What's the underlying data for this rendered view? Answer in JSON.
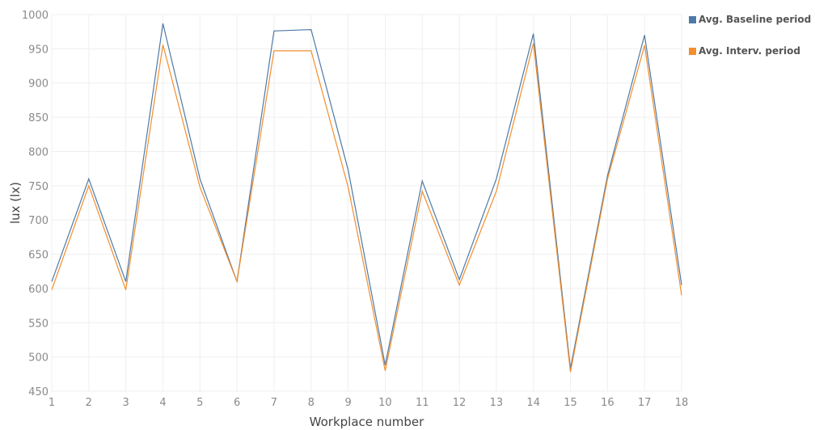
{
  "chart_data": {
    "type": "line",
    "xlabel": "Workplace number",
    "ylabel": "lux (lx)",
    "ylim": [
      450,
      1000
    ],
    "yticks": [
      450,
      500,
      550,
      600,
      650,
      700,
      750,
      800,
      850,
      900,
      950,
      1000
    ],
    "x": [
      1,
      2,
      3,
      4,
      5,
      6,
      7,
      8,
      9,
      10,
      11,
      12,
      13,
      14,
      15,
      16,
      17,
      18
    ],
    "grid": true,
    "legend_position": "top-right",
    "series": [
      {
        "name": "Avg. Baseline period",
        "color": "#4e79a7",
        "values": [
          610,
          760,
          610,
          987,
          760,
          610,
          976,
          978,
          773,
          488,
          757,
          613,
          760,
          972,
          483,
          765,
          970,
          605
        ]
      },
      {
        "name": "Avg. Interv. period",
        "color": "#f28e2b",
        "values": [
          598,
          750,
          598,
          956,
          748,
          610,
          947,
          947,
          748,
          480,
          742,
          605,
          742,
          958,
          478,
          760,
          955,
          590
        ]
      }
    ]
  }
}
